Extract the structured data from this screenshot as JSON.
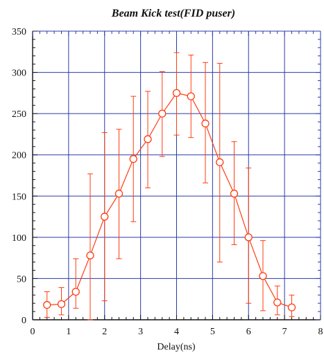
{
  "chart_data": {
    "type": "scatter",
    "title": "Beam Kick test(FID puser)",
    "xlabel": "Delay(ns)",
    "ylabel": "",
    "xlim": [
      0,
      8
    ],
    "ylim": [
      0,
      350
    ],
    "xticks": [
      "0",
      "1",
      "2",
      "3",
      "4",
      "5",
      "6",
      "7",
      "8"
    ],
    "yticks": [
      "0",
      "50",
      "100",
      "150",
      "200",
      "250",
      "300",
      "350"
    ],
    "grid": true,
    "legend": "none",
    "colors": {
      "series": "#ff3b10",
      "grid": "#2a3aa8",
      "axis": "#111111"
    },
    "series": [
      {
        "marker": "open-circle",
        "line": "solid",
        "x": [
          0.4,
          0.8,
          1.2,
          1.6,
          2.0,
          2.4,
          2.8,
          3.2,
          3.6,
          4.0,
          4.4,
          4.8,
          5.2,
          5.6,
          6.0,
          6.4,
          6.8,
          7.2
        ],
        "y": [
          18,
          19,
          34,
          78,
          125,
          153,
          195,
          219,
          250,
          275,
          271,
          238,
          191,
          153,
          100,
          53,
          21,
          15
        ],
        "err_low": [
          3,
          6,
          14,
          0,
          23,
          74,
          119,
          160,
          198,
          224,
          221,
          166,
          70,
          91,
          20,
          11,
          6,
          4
        ],
        "err_high": [
          34,
          39,
          74,
          177,
          227,
          231,
          271,
          277,
          301,
          324,
          321,
          312,
          311,
          216,
          184,
          96,
          41,
          30
        ]
      }
    ]
  }
}
